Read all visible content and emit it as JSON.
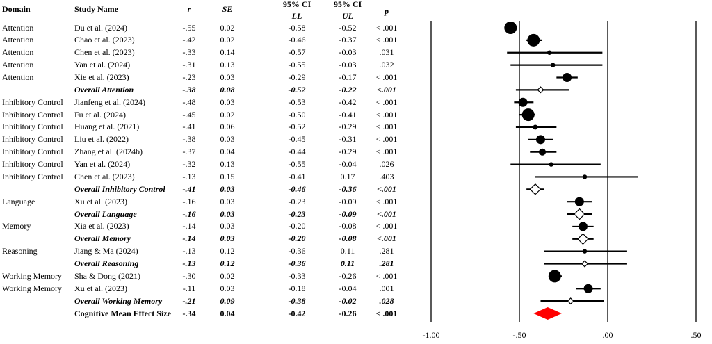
{
  "headers": {
    "domain": "Domain",
    "study": "Study Name",
    "r": "r",
    "se": "SE",
    "ci": "95% CI",
    "ll": "LL",
    "ul": "UL",
    "p": "p"
  },
  "rows": [
    {
      "domain": "Attention",
      "study": "Du et al. (2024)",
      "r": "-.55",
      "se": "0.02",
      "ll": "-0.58",
      "ul": "-0.52",
      "p": "< .001",
      "type": "study"
    },
    {
      "domain": "Attention",
      "study": "Chao et al. (2023)",
      "r": "-.42",
      "se": "0.02",
      "ll": "-0.46",
      "ul": "-0.37",
      "p": "< .001",
      "type": "study"
    },
    {
      "domain": "Attention",
      "study": "Chen et al. (2023)",
      "r": "-.33",
      "se": "0.14",
      "ll": "-0.57",
      "ul": "-0.03",
      "p": ".031",
      "type": "study"
    },
    {
      "domain": "Attention",
      "study": "Yan et al. (2024)",
      "r": "-.31",
      "se": "0.13",
      "ll": "-0.55",
      "ul": "-0.03",
      "p": ".032",
      "type": "study"
    },
    {
      "domain": "Attention",
      "study": "Xie et al. (2023)",
      "r": "-.23",
      "se": "0.03",
      "ll": "-0.29",
      "ul": "-0.17",
      "p": "< .001",
      "type": "study"
    },
    {
      "domain": "",
      "study": "Overall Attention",
      "r": "-.38",
      "se": "0.08",
      "ll": "-0.52",
      "ul": "-0.22",
      "p": "<.001",
      "type": "overall"
    },
    {
      "domain": "Inhibitory Control",
      "study": "Jianfeng et al. (2024)",
      "r": "-.48",
      "se": "0.03",
      "ll": "-0.53",
      "ul": "-0.42",
      "p": "< .001",
      "type": "study"
    },
    {
      "domain": "Inhibitory Control",
      "study": "Fu et al. (2024)",
      "r": "-.45",
      "se": "0.02",
      "ll": "-0.50",
      "ul": "-0.41",
      "p": "< .001",
      "type": "study"
    },
    {
      "domain": "Inhibitory Control",
      "study": "Huang et al. (2021)",
      "r": "-.41",
      "se": "0.06",
      "ll": "-0.52",
      "ul": "-0.29",
      "p": "< .001",
      "type": "study"
    },
    {
      "domain": "Inhibitory Control",
      "study": "Liu et al. (2022)",
      "r": "-.38",
      "se": "0.03",
      "ll": "-0.45",
      "ul": "-0.31",
      "p": "< .001",
      "type": "study"
    },
    {
      "domain": "Inhibitory Control",
      "study": "Zhang et al. (2024b)",
      "r": "-.37",
      "se": "0.04",
      "ll": "-0.44",
      "ul": "-0.29",
      "p": "< .001",
      "type": "study"
    },
    {
      "domain": "Inhibitory Control",
      "study": "Yan et al. (2024)",
      "r": "-.32",
      "se": "0.13",
      "ll": "-0.55",
      "ul": "-0.04",
      "p": ".026",
      "type": "study"
    },
    {
      "domain": "Inhibitory Control",
      "study": "Chen et al. (2023)",
      "r": "-.13",
      "se": "0.15",
      "ll": "-0.41",
      "ul": "0.17",
      "p": ".403",
      "type": "study"
    },
    {
      "domain": "",
      "study": "Overall Inhibitory Control",
      "r": "-.41",
      "se": "0.03",
      "ll": "-0.46",
      "ul": "-0.36",
      "p": "<.001",
      "type": "overall"
    },
    {
      "domain": "Language",
      "study": "Xu et al. (2023)",
      "r": "-.16",
      "se": "0.03",
      "ll": "-0.23",
      "ul": "-0.09",
      "p": "< .001",
      "type": "study"
    },
    {
      "domain": "",
      "study": "Overall Language",
      "r": "-.16",
      "se": "0.03",
      "ll": "-0.23",
      "ul": "-0.09",
      "p": "<.001",
      "type": "overall"
    },
    {
      "domain": "Memory",
      "study": "Xia et al. (2023)",
      "r": "-.14",
      "se": "0.03",
      "ll": "-0.20",
      "ul": "-0.08",
      "p": "< .001",
      "type": "study"
    },
    {
      "domain": "",
      "study": "Overall Memory",
      "r": "-.14",
      "se": "0.03",
      "ll": "-0.20",
      "ul": "-0.08",
      "p": "<.001",
      "type": "overall"
    },
    {
      "domain": "Reasoning",
      "study": "Jiang & Ma (2024)",
      "r": "-.13",
      "se": "0.12",
      "ll": "-0.36",
      "ul": "0.11",
      "p": ".281",
      "type": "study"
    },
    {
      "domain": "",
      "study": "Overall Reasoning",
      "r": "-.13",
      "se": "0.12",
      "ll": "-0.36",
      "ul": "0.11",
      "p": ".281",
      "type": "overall"
    },
    {
      "domain": "Working Memory",
      "study": "Sha & Dong (2021)",
      "r": "-.30",
      "se": "0.02",
      "ll": "-0.33",
      "ul": "-0.26",
      "p": "< .001",
      "type": "study"
    },
    {
      "domain": "Working Memory",
      "study": "Xu et al. (2023)",
      "r": "-.11",
      "se": "0.03",
      "ll": "-0.18",
      "ul": "-0.04",
      "p": ".001",
      "type": "study"
    },
    {
      "domain": "",
      "study": "Overall Working Memory",
      "r": "-.21",
      "se": "0.09",
      "ll": "-0.38",
      "ul": "-0.02",
      "p": ".028",
      "type": "overall"
    },
    {
      "domain": "",
      "study": "Cognitive Mean Effect Size",
      "r": "-.34",
      "se": "0.04",
      "ll": "-0.42",
      "ul": "-0.26",
      "p": "< .001",
      "type": "total"
    }
  ],
  "chart_data": {
    "type": "forest",
    "xlim": [
      -1.0,
      0.5
    ],
    "ticks": [
      -1.0,
      -0.5,
      0.0,
      0.5
    ],
    "tick_labels": [
      "-1.00",
      "-.50",
      ".00",
      ".50"
    ],
    "grid": "vertical lines at ticks",
    "colors": {
      "marker": "#000000",
      "total": "#ff0000"
    },
    "estimates": [
      -0.55,
      -0.42,
      -0.33,
      -0.31,
      -0.23,
      -0.38,
      -0.48,
      -0.45,
      -0.41,
      -0.38,
      -0.37,
      -0.32,
      -0.13,
      -0.41,
      -0.16,
      -0.16,
      -0.14,
      -0.14,
      -0.13,
      -0.13,
      -0.3,
      -0.11,
      -0.21,
      -0.34
    ],
    "lower": [
      -0.58,
      -0.46,
      -0.57,
      -0.55,
      -0.29,
      -0.52,
      -0.53,
      -0.5,
      -0.52,
      -0.45,
      -0.44,
      -0.55,
      -0.41,
      -0.46,
      -0.23,
      -0.23,
      -0.2,
      -0.2,
      -0.36,
      -0.36,
      -0.33,
      -0.18,
      -0.38,
      -0.42
    ],
    "upper": [
      -0.52,
      -0.37,
      -0.03,
      -0.03,
      -0.17,
      -0.22,
      -0.42,
      -0.41,
      -0.29,
      -0.31,
      -0.29,
      -0.04,
      0.17,
      -0.36,
      -0.09,
      -0.09,
      -0.08,
      -0.08,
      0.11,
      0.11,
      -0.26,
      -0.04,
      -0.02,
      -0.26
    ],
    "se": [
      0.02,
      0.02,
      0.14,
      0.13,
      0.03,
      0.08,
      0.03,
      0.02,
      0.06,
      0.03,
      0.04,
      0.13,
      0.15,
      0.03,
      0.03,
      0.03,
      0.03,
      0.03,
      0.12,
      0.12,
      0.02,
      0.03,
      0.09,
      0.04
    ]
  }
}
